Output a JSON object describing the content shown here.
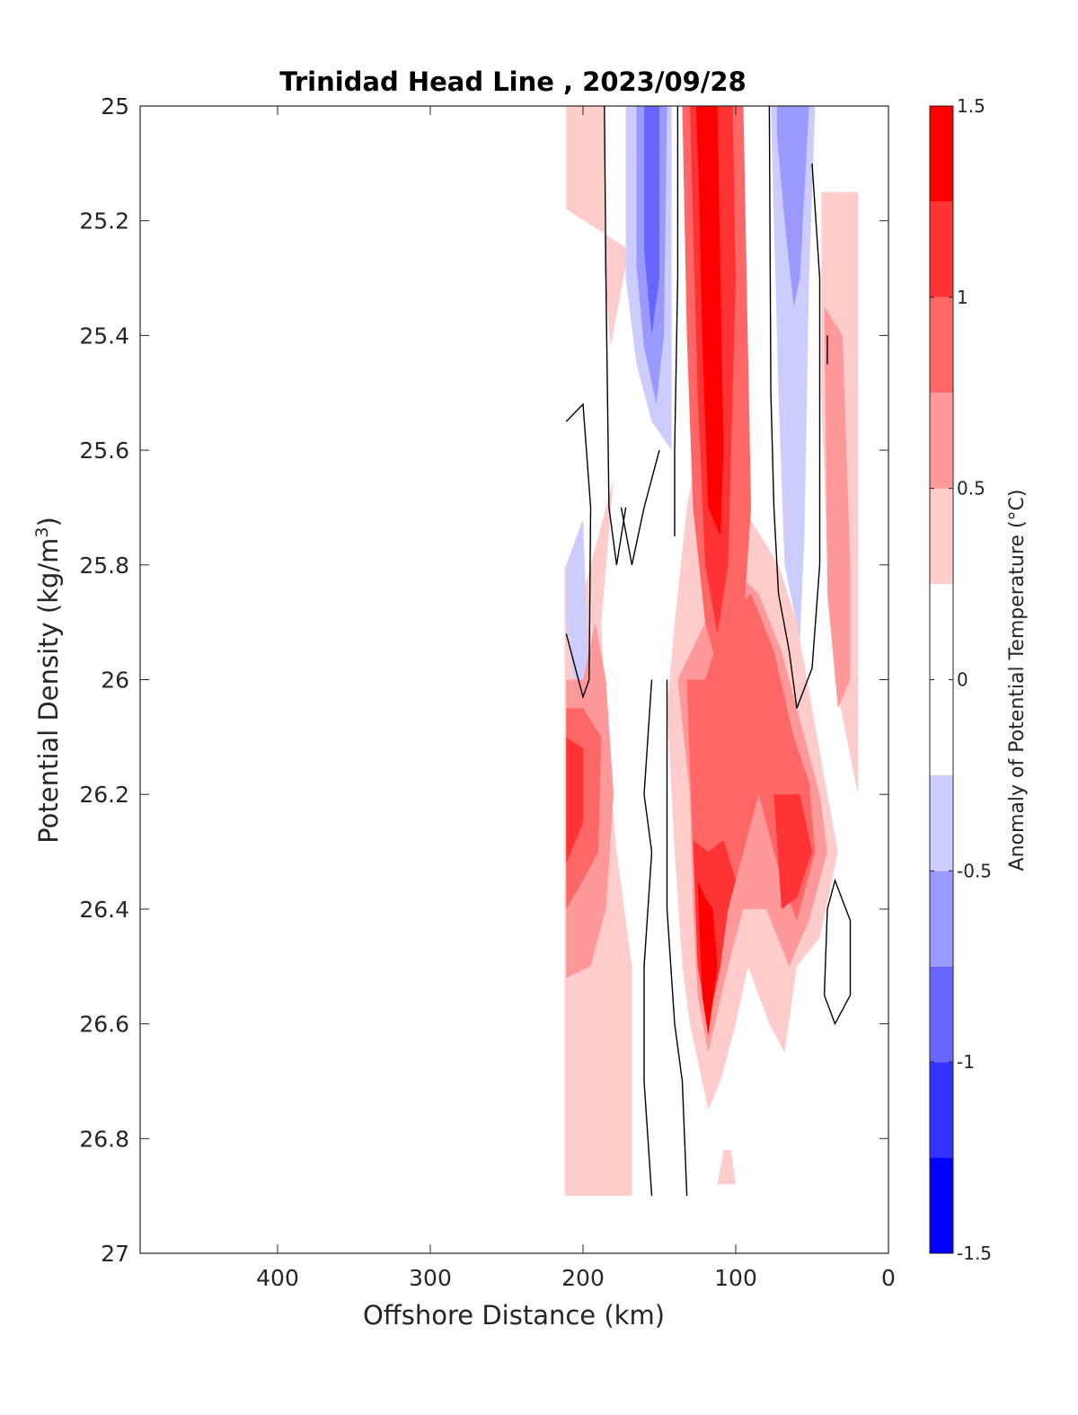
{
  "chart_data": {
    "type": "contourf",
    "title": "Trinidad Head Line , 2023/09/28",
    "xlabel": "Offshore Distance (km)",
    "ylabel": "Potential Density (kg/m",
    "ylabel_sup": "3",
    "ylabel_close": ")",
    "xlim": [
      490,
      0
    ],
    "ylim": [
      25,
      27
    ],
    "x_reversed": true,
    "y_reversed": true,
    "xticks": [
      400,
      300,
      200,
      100,
      0
    ],
    "xtick_labels": [
      "400",
      "300",
      "200",
      "100",
      "0"
    ],
    "yticks": [
      25,
      25.2,
      25.4,
      25.6,
      25.8,
      26,
      26.2,
      26.4,
      26.6,
      26.8,
      27
    ],
    "ytick_labels": [
      "25",
      "25.2",
      "25.4",
      "25.6",
      "25.8",
      "26",
      "26.2",
      "26.4",
      "26.6",
      "26.8",
      "27"
    ],
    "colorbar": {
      "label": "Anomaly of Potential Temperature (°C)",
      "range": [
        -1.5,
        1.5
      ],
      "levels": [
        -1.5,
        -1.25,
        -1.0,
        -0.75,
        -0.5,
        -0.25,
        0.25,
        0.5,
        0.75,
        1.0,
        1.25,
        1.5
      ],
      "colors": [
        "#0000ff",
        "#3333ff",
        "#6666ff",
        "#9999ff",
        "#ccccff",
        "#ffffff",
        "#ffcccc",
        "#ff9999",
        "#ff6666",
        "#ff3333",
        "#ff0000"
      ],
      "tick_values": [
        1.5,
        1,
        0.5,
        0,
        -0.5,
        -1,
        -1.5
      ],
      "tick_labels": [
        "1.5",
        "1",
        "0.5",
        "0",
        "-0.5",
        "-1",
        "-1.5"
      ]
    },
    "contour_line_level": 0,
    "fill_regions": [
      {
        "level": 0.375,
        "points": [
          [
            211,
            25.0
          ],
          [
            186,
            25.0
          ],
          [
            186,
            25.28
          ],
          [
            182,
            25.42
          ],
          [
            170,
            25.25
          ],
          [
            211,
            25.18
          ]
        ]
      },
      {
        "level": -0.375,
        "points": [
          [
            172,
            25.0
          ],
          [
            142,
            25.0
          ],
          [
            142,
            25.6
          ],
          [
            155,
            25.55
          ],
          [
            165,
            25.45
          ],
          [
            172,
            25.3
          ]
        ]
      },
      {
        "level": -0.625,
        "points": [
          [
            165,
            25.0
          ],
          [
            145,
            25.0
          ],
          [
            147,
            25.4
          ],
          [
            152,
            25.52
          ],
          [
            160,
            25.42
          ],
          [
            165,
            25.28
          ]
        ]
      },
      {
        "level": -0.875,
        "points": [
          [
            160,
            25.0
          ],
          [
            150,
            25.0
          ],
          [
            150,
            25.3
          ],
          [
            155,
            25.4
          ],
          [
            160,
            25.25
          ]
        ]
      },
      {
        "level": -0.375,
        "points": [
          [
            77,
            25.0
          ],
          [
            48,
            25.0
          ],
          [
            52,
            25.3
          ],
          [
            55,
            25.75
          ],
          [
            58,
            25.93
          ],
          [
            68,
            25.8
          ],
          [
            72,
            25.5
          ],
          [
            75,
            25.2
          ]
        ]
      },
      {
        "level": -0.625,
        "points": [
          [
            73,
            25.0
          ],
          [
            52,
            25.0
          ],
          [
            58,
            25.3
          ],
          [
            62,
            25.35
          ],
          [
            68,
            25.2
          ],
          [
            73,
            25.05
          ]
        ]
      },
      {
        "level": 0.375,
        "points": [
          [
            44,
            25.15
          ],
          [
            20,
            25.15
          ],
          [
            20,
            26.2
          ],
          [
            35,
            26.0
          ],
          [
            40,
            25.8
          ],
          [
            44,
            25.5
          ]
        ]
      },
      {
        "level": 0.625,
        "points": [
          [
            42,
            25.35
          ],
          [
            30,
            25.4
          ],
          [
            25,
            25.8
          ],
          [
            25,
            26.0
          ],
          [
            33,
            26.05
          ],
          [
            40,
            25.85
          ]
        ]
      },
      {
        "level": 0.375,
        "points": [
          [
            212,
            25.8
          ],
          [
            212,
            26.9
          ],
          [
            168,
            26.9
          ],
          [
            168,
            26.5
          ],
          [
            178,
            26.3
          ],
          [
            185,
            26.1
          ],
          [
            188,
            25.9
          ],
          [
            180,
            25.65
          ],
          [
            200,
            25.85
          ]
        ]
      },
      {
        "level": 0.375,
        "points": [
          [
            145,
            26.05
          ],
          [
            140,
            26.3
          ],
          [
            135,
            26.5
          ],
          [
            130,
            26.6
          ],
          [
            118,
            26.75
          ],
          [
            110,
            26.7
          ],
          [
            100,
            26.6
          ],
          [
            92,
            26.5
          ],
          [
            78,
            26.6
          ],
          [
            68,
            26.65
          ],
          [
            60,
            26.5
          ],
          [
            45,
            26.45
          ],
          [
            33,
            26.3
          ],
          [
            40,
            26.2
          ],
          [
            50,
            26.05
          ],
          [
            60,
            25.9
          ],
          [
            72,
            25.8
          ],
          [
            95,
            25.7
          ],
          [
            118,
            25.5
          ],
          [
            132,
            25.7
          ],
          [
            140,
            25.9
          ]
        ]
      },
      {
        "level": -0.375,
        "points": [
          [
            211,
            25.8
          ],
          [
            200,
            25.72
          ],
          [
            196,
            26.0
          ],
          [
            200,
            26.06
          ],
          [
            206,
            26.0
          ],
          [
            211,
            25.9
          ]
        ]
      },
      {
        "level": 0.625,
        "points": [
          [
            211,
            26.0
          ],
          [
            211,
            26.52
          ],
          [
            195,
            26.5
          ],
          [
            185,
            26.4
          ],
          [
            180,
            26.2
          ],
          [
            185,
            26.0
          ],
          [
            192,
            25.9
          ],
          [
            200,
            26.0
          ]
        ]
      },
      {
        "level": 0.875,
        "points": [
          [
            211,
            26.05
          ],
          [
            211,
            26.4
          ],
          [
            200,
            26.35
          ],
          [
            190,
            26.3
          ],
          [
            188,
            26.1
          ],
          [
            200,
            26.05
          ]
        ]
      },
      {
        "level": 1.125,
        "points": [
          [
            211,
            26.1
          ],
          [
            211,
            26.32
          ],
          [
            200,
            26.25
          ],
          [
            200,
            26.12
          ]
        ]
      },
      {
        "level": 0.625,
        "points": [
          [
            138,
            26.0
          ],
          [
            130,
            26.2
          ],
          [
            128,
            26.4
          ],
          [
            125,
            26.55
          ],
          [
            118,
            26.65
          ],
          [
            105,
            26.5
          ],
          [
            95,
            26.4
          ],
          [
            80,
            26.4
          ],
          [
            65,
            26.5
          ],
          [
            52,
            26.42
          ],
          [
            40,
            26.3
          ],
          [
            45,
            26.2
          ],
          [
            55,
            26.1
          ],
          [
            70,
            25.95
          ],
          [
            85,
            25.85
          ],
          [
            105,
            25.8
          ],
          [
            120,
            25.9
          ]
        ]
      },
      {
        "level": 0.875,
        "points": [
          [
            132,
            26.0
          ],
          [
            128,
            26.3
          ],
          [
            125,
            26.45
          ],
          [
            120,
            26.55
          ],
          [
            110,
            26.45
          ],
          [
            100,
            26.35
          ],
          [
            85,
            26.2
          ],
          [
            70,
            26.35
          ],
          [
            60,
            26.42
          ],
          [
            48,
            26.3
          ],
          [
            52,
            26.18
          ],
          [
            62,
            26.1
          ],
          [
            75,
            25.95
          ],
          [
            90,
            25.85
          ],
          [
            108,
            25.9
          ],
          [
            120,
            26.0
          ]
        ]
      },
      {
        "level": 1.125,
        "points": [
          [
            128,
            26.28
          ],
          [
            125,
            26.5
          ],
          [
            118,
            26.6
          ],
          [
            110,
            26.5
          ],
          [
            105,
            26.4
          ],
          [
            100,
            26.35
          ],
          [
            108,
            26.28
          ],
          [
            118,
            26.3
          ]
        ]
      },
      {
        "level": 1.125,
        "points": [
          [
            75,
            26.2
          ],
          [
            58,
            26.2
          ],
          [
            50,
            26.3
          ],
          [
            60,
            26.38
          ],
          [
            70,
            26.4
          ]
        ]
      },
      {
        "level": 0.875,
        "points": [
          [
            135,
            25.0
          ],
          [
            95,
            25.0
          ],
          [
            90,
            25.7
          ],
          [
            95,
            25.9
          ],
          [
            110,
            26.0
          ],
          [
            120,
            25.9
          ],
          [
            128,
            25.7
          ],
          [
            132,
            25.4
          ]
        ]
      },
      {
        "level": 1.125,
        "points": [
          [
            130,
            25.0
          ],
          [
            102,
            25.0
          ],
          [
            100,
            25.3
          ],
          [
            105,
            25.8
          ],
          [
            112,
            25.92
          ],
          [
            120,
            25.8
          ],
          [
            125,
            25.5
          ],
          [
            128,
            25.2
          ]
        ]
      },
      {
        "level": 1.375,
        "points": [
          [
            126,
            25.0
          ],
          [
            112,
            25.0
          ],
          [
            110,
            25.3
          ],
          [
            108,
            25.6
          ],
          [
            110,
            25.75
          ],
          [
            118,
            25.7
          ],
          [
            122,
            25.4
          ],
          [
            124,
            25.15
          ]
        ]
      },
      {
        "level": 1.375,
        "points": [
          [
            125,
            26.35
          ],
          [
            122,
            26.55
          ],
          [
            118,
            26.62
          ],
          [
            112,
            26.5
          ],
          [
            115,
            26.4
          ],
          [
            120,
            26.38
          ]
        ]
      },
      {
        "level": 0.375,
        "points": [
          [
            112,
            26.88
          ],
          [
            100,
            26.88
          ],
          [
            103,
            26.82
          ],
          [
            108,
            26.82
          ]
        ]
      }
    ],
    "contour_lines": [
      {
        "points": [
          [
            186,
            25.0
          ],
          [
            185,
            25.3
          ],
          [
            183,
            25.7
          ],
          [
            178,
            25.8
          ],
          [
            172,
            25.7
          ]
        ]
      },
      {
        "points": [
          [
            138,
            25.0
          ],
          [
            138,
            25.3
          ],
          [
            140,
            25.6
          ],
          [
            140,
            25.75
          ]
        ]
      },
      {
        "points": [
          [
            40,
            25.45
          ],
          [
            40,
            25.4
          ]
        ]
      },
      {
        "points": [
          [
            211,
            25.55
          ],
          [
            200,
            25.52
          ],
          [
            195,
            25.7
          ],
          [
            196,
            26.0
          ],
          [
            200,
            26.03
          ],
          [
            208,
            25.95
          ],
          [
            211,
            25.92
          ]
        ]
      },
      {
        "points": [
          [
            175,
            25.7
          ],
          [
            168,
            25.8
          ],
          [
            160,
            25.7
          ],
          [
            150,
            25.6
          ]
        ]
      },
      {
        "points": [
          [
            155,
            26.0
          ],
          [
            160,
            26.2
          ],
          [
            155,
            26.3
          ],
          [
            160,
            26.5
          ],
          [
            160,
            26.7
          ],
          [
            155,
            26.9
          ]
        ]
      },
      {
        "points": [
          [
            145,
            26.0
          ],
          [
            145,
            26.4
          ],
          [
            140,
            26.6
          ],
          [
            135,
            26.7
          ],
          [
            132,
            26.9
          ]
        ]
      },
      {
        "points": [
          [
            78,
            25.0
          ],
          [
            77,
            25.5
          ],
          [
            75,
            25.7
          ],
          [
            72,
            25.85
          ],
          [
            65,
            25.95
          ],
          [
            60,
            26.05
          ],
          [
            50,
            25.98
          ],
          [
            45,
            25.8
          ],
          [
            45,
            25.3
          ],
          [
            50,
            25.1
          ]
        ]
      },
      {
        "points": [
          [
            40,
            26.4
          ],
          [
            35,
            26.35
          ],
          [
            25,
            26.42
          ],
          [
            25,
            26.55
          ],
          [
            35,
            26.6
          ],
          [
            42,
            26.55
          ],
          [
            40,
            26.4
          ]
        ]
      }
    ]
  }
}
